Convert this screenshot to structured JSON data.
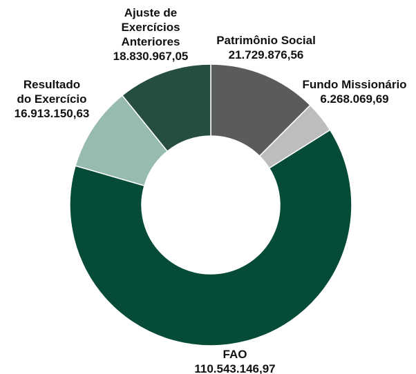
{
  "chart_data": {
    "type": "donut",
    "categories": [
      "Patrimônio Social",
      "Fundo Missionário",
      "FAO",
      "Resultado\ndo Exercício",
      "Ajuste de\nExercícios\nAnteriores"
    ],
    "values": [
      21729876.56,
      6268069.69,
      110543146.97,
      16913150.63,
      18830967.05
    ],
    "value_labels": [
      "21.729.876,56",
      "6.268.069,69",
      "110.543.146,97",
      "16.913.150,63",
      "18.830.967,05"
    ],
    "colors": [
      "#5a5c5a",
      "#bdbdbd",
      "#064b38",
      "#97bbae",
      "#254d40"
    ]
  }
}
